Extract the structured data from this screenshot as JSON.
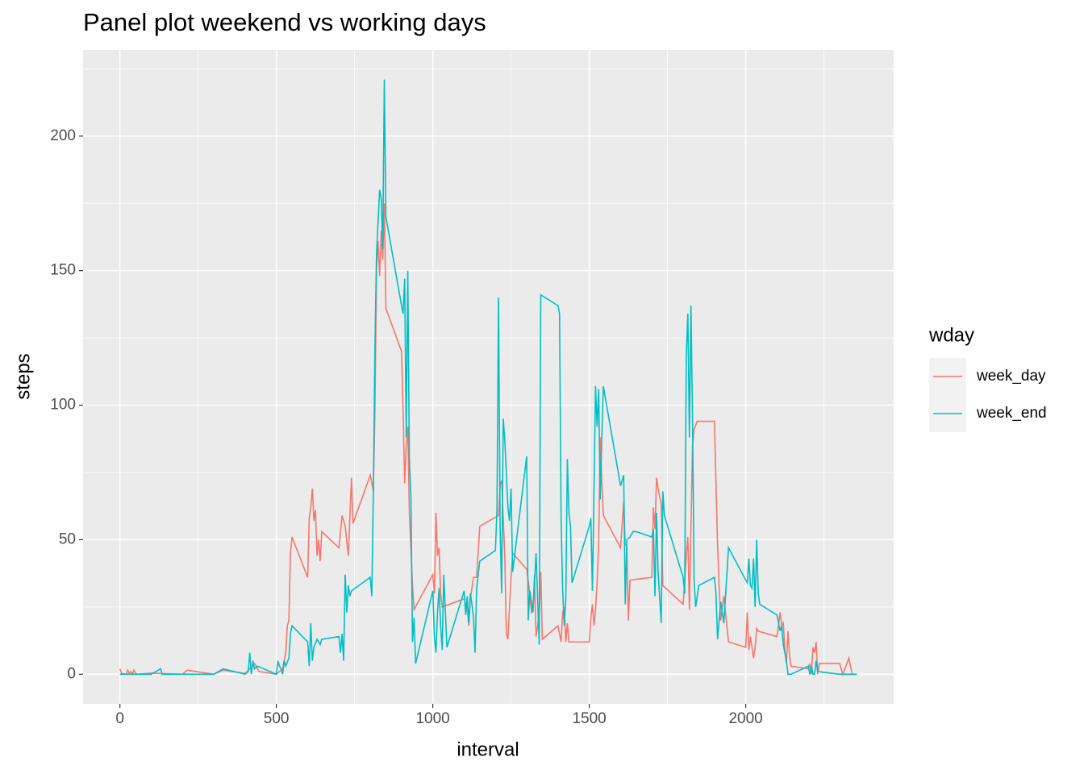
{
  "chart_data": {
    "type": "line",
    "title": "Panel plot weekend vs working days",
    "x_label": "interval",
    "y_label": "steps",
    "legend_title": "wday",
    "legend_position": "right",
    "grid": true,
    "xlim": [
      -117.75,
      2472.75
    ],
    "ylim": [
      -11,
      232
    ],
    "xticks": [
      0,
      500,
      1000,
      1500,
      2000
    ],
    "yticks": [
      0,
      50,
      100,
      150,
      200
    ],
    "xminor": [
      250,
      750,
      1250,
      1750,
      2250
    ],
    "yminor": [
      25,
      75,
      125,
      175,
      225
    ],
    "series": [
      {
        "name": "week_day",
        "color": "#F8766D",
        "x": [
          0,
          5,
          10,
          15,
          20,
          25,
          30,
          35,
          40,
          45,
          50,
          55,
          100,
          200,
          215,
          300,
          330,
          400,
          415,
          430,
          445,
          500,
          520,
          530,
          535,
          540,
          545,
          550,
          600,
          605,
          610,
          615,
          620,
          625,
          630,
          635,
          640,
          645,
          700,
          710,
          720,
          730,
          740,
          745,
          800,
          810,
          815,
          820,
          825,
          830,
          835,
          840,
          845,
          850,
          900,
          905,
          910,
          915,
          920,
          925,
          930,
          935,
          940,
          1000,
          1005,
          1010,
          1015,
          1020,
          1025,
          1030,
          1100,
          1110,
          1115,
          1120,
          1130,
          1140,
          1150,
          1210,
          1215,
          1220,
          1230,
          1235,
          1240,
          1250,
          1255,
          1300,
          1310,
          1315,
          1320,
          1325,
          1330,
          1340,
          1345,
          1350,
          1400,
          1410,
          1415,
          1420,
          1425,
          1430,
          1435,
          1500,
          1505,
          1510,
          1515,
          1520,
          1525,
          1530,
          1535,
          1540,
          1545,
          1600,
          1610,
          1615,
          1620,
          1625,
          1630,
          1700,
          1705,
          1710,
          1715,
          1720,
          1730,
          1735,
          1800,
          1810,
          1815,
          1820,
          1830,
          1835,
          1845,
          1900,
          1910,
          1915,
          1920,
          1930,
          1945,
          2000,
          2005,
          2010,
          2015,
          2025,
          2030,
          2035,
          2040,
          2100,
          2110,
          2115,
          2120,
          2125,
          2130,
          2135,
          2140,
          2145,
          2200,
          2205,
          2210,
          2215,
          2220,
          2225,
          2230,
          2235,
          2300,
          2310,
          2330,
          2340,
          2355
        ],
        "values": [
          2,
          0.4,
          0.1,
          0.1,
          0,
          1.5,
          0.3,
          1,
          0,
          1.5,
          0.4,
          0,
          0.4,
          0,
          1.5,
          0,
          1.5,
          0.3,
          2,
          4,
          1,
          0,
          2,
          8,
          18,
          20,
          45,
          51,
          36,
          58,
          62,
          69,
          57,
          61,
          44,
          50,
          42,
          53,
          47,
          59,
          55,
          44,
          73,
          56,
          74,
          68,
          98,
          150,
          161,
          148,
          165,
          154,
          175,
          136,
          120,
          98,
          71,
          85,
          92,
          60,
          47,
          33,
          24,
          37,
          30,
          60,
          44,
          47,
          30,
          25,
          28,
          24,
          18,
          28,
          36,
          36,
          55,
          59,
          70,
          72,
          44,
          15,
          13,
          36,
          45,
          39,
          30,
          23,
          24,
          37,
          14,
          22,
          38,
          13,
          18,
          12,
          23,
          25,
          12,
          19,
          12,
          12,
          21,
          26,
          18,
          24,
          34,
          48,
          88,
          72,
          59,
          47,
          64,
          48,
          48,
          20,
          35,
          36,
          62,
          54,
          73,
          69,
          63,
          33,
          26,
          44,
          51,
          24,
          85,
          91,
          94,
          94,
          48,
          33,
          20,
          29,
          12,
          10,
          23,
          9,
          14,
          6,
          10,
          17,
          16,
          14,
          23,
          18,
          19,
          9,
          4,
          16,
          7,
          3,
          2,
          4,
          0,
          10,
          8,
          12,
          0,
          4,
          4,
          0,
          6,
          0,
          0
        ]
      },
      {
        "name": "week_end",
        "color": "#00BFC4",
        "x": [
          0,
          100,
          130,
          135,
          200,
          300,
          330,
          400,
          410,
          415,
          420,
          425,
          430,
          440,
          500,
          505,
          510,
          515,
          520,
          525,
          530,
          540,
          545,
          550,
          600,
          605,
          610,
          615,
          620,
          630,
          640,
          645,
          700,
          705,
          710,
          715,
          720,
          725,
          730,
          735,
          740,
          800,
          805,
          810,
          815,
          820,
          825,
          830,
          835,
          840,
          845,
          850,
          900,
          905,
          910,
          915,
          920,
          925,
          930,
          935,
          940,
          945,
          1000,
          1005,
          1010,
          1015,
          1020,
          1025,
          1030,
          1035,
          1045,
          1100,
          1105,
          1110,
          1115,
          1120,
          1125,
          1130,
          1135,
          1140,
          1150,
          1200,
          1205,
          1210,
          1215,
          1220,
          1225,
          1230,
          1240,
          1245,
          1250,
          1255,
          1300,
          1305,
          1310,
          1320,
          1330,
          1340,
          1345,
          1400,
          1405,
          1410,
          1415,
          1420,
          1425,
          1430,
          1435,
          1440,
          1445,
          1500,
          1505,
          1510,
          1515,
          1520,
          1525,
          1530,
          1535,
          1540,
          1545,
          1600,
          1610,
          1615,
          1620,
          1630,
          1640,
          1650,
          1700,
          1705,
          1710,
          1715,
          1720,
          1730,
          1735,
          1740,
          1800,
          1805,
          1810,
          1815,
          1820,
          1825,
          1830,
          1835,
          1840,
          1850,
          1900,
          1905,
          1910,
          1915,
          1920,
          1930,
          1945,
          2000,
          2005,
          2010,
          2015,
          2020,
          2025,
          2030,
          2035,
          2040,
          2045,
          2100,
          2110,
          2115,
          2120,
          2130,
          2135,
          2140,
          2145,
          2200,
          2205,
          2210,
          2215,
          2220,
          2225,
          2230,
          2300,
          2330,
          2340,
          2355
        ],
        "values": [
          0,
          0,
          2,
          0,
          0,
          0,
          2,
          0,
          1,
          8,
          0,
          5,
          2,
          3,
          0,
          5,
          3,
          2,
          0,
          5,
          3,
          6,
          15,
          18,
          12,
          3,
          19,
          5,
          10,
          13,
          11,
          13,
          14,
          8,
          15,
          5,
          37,
          23,
          33,
          29,
          31,
          36,
          29,
          68,
          121,
          156,
          168,
          180,
          177,
          158,
          221,
          170,
          137,
          134,
          147,
          88,
          150,
          80,
          66,
          12,
          21,
          4,
          31,
          14,
          8,
          23,
          32,
          18,
          9,
          37,
          10,
          31,
          22,
          29,
          19,
          30,
          26,
          21,
          8,
          32,
          42,
          46,
          61,
          140,
          55,
          30,
          95,
          87,
          62,
          57,
          69,
          38,
          81,
          20,
          31,
          23,
          45,
          11,
          141,
          137,
          134,
          57,
          31,
          18,
          28,
          80,
          60,
          55,
          34,
          55,
          58,
          31,
          67,
          107,
          92,
          106,
          65,
          88,
          107,
          70,
          74,
          26,
          50,
          51,
          53,
          53,
          51,
          54,
          29,
          60,
          38,
          19,
          68,
          59,
          36,
          30,
          118,
          134,
          88,
          137,
          94,
          35,
          25,
          33,
          36,
          30,
          13,
          20,
          27,
          19,
          47,
          35,
          34,
          43,
          33,
          32,
          43,
          25,
          50,
          30,
          26,
          22,
          16,
          18,
          11,
          5,
          0,
          0,
          0,
          3,
          0,
          3,
          0,
          0,
          5,
          1,
          0,
          0,
          0,
          0
        ]
      }
    ]
  }
}
